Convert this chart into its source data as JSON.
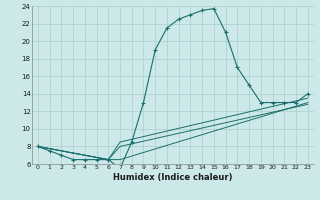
{
  "xlabel": "Humidex (Indice chaleur)",
  "bg_color": "#cde8e8",
  "grid_color": "#aacece",
  "line_color": "#1a6e6e",
  "xlim": [
    -0.5,
    23.5
  ],
  "ylim": [
    6,
    24
  ],
  "xticks": [
    0,
    1,
    2,
    3,
    4,
    5,
    6,
    7,
    8,
    9,
    10,
    11,
    12,
    13,
    14,
    15,
    16,
    17,
    18,
    19,
    20,
    21,
    22,
    23
  ],
  "yticks": [
    6,
    8,
    10,
    12,
    14,
    16,
    18,
    20,
    22,
    24
  ],
  "main_series": {
    "x": [
      0,
      1,
      2,
      3,
      4,
      5,
      6,
      7,
      8,
      9,
      10,
      11,
      12,
      13,
      14,
      15,
      16,
      17,
      18,
      19,
      20,
      21,
      22,
      23
    ],
    "y": [
      8,
      7.5,
      7,
      6.5,
      6.5,
      6.5,
      6.5,
      5.5,
      8.5,
      13,
      19,
      21.5,
      22.5,
      23,
      23.5,
      23.7,
      21,
      17,
      15,
      13,
      13,
      13,
      13,
      14
    ]
  },
  "line_series": [
    {
      "x": [
        0,
        6,
        7,
        23
      ],
      "y": [
        8,
        6.5,
        6.5,
        13
      ]
    },
    {
      "x": [
        0,
        6,
        7,
        23
      ],
      "y": [
        8,
        6.5,
        8.5,
        13.5
      ]
    },
    {
      "x": [
        0,
        6,
        7,
        23
      ],
      "y": [
        8,
        6.5,
        8.0,
        12.8
      ]
    }
  ]
}
